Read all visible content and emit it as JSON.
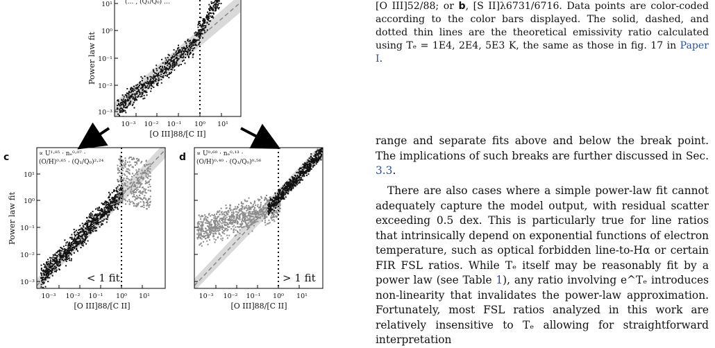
{
  "figure": {
    "top_panel": {
      "ylabel": "Power law fit",
      "xlabel": "[O III]88/[C II]",
      "y_ticks": [
        "10¹",
        "10⁰",
        "10⁻¹",
        "10⁻²",
        "10⁻³"
      ],
      "x_ticks": [
        "10⁻³",
        "10⁻²",
        "10⁻¹",
        "10⁰",
        "10¹"
      ],
      "formula": "(… , (Q₁/Q₀) …"
    },
    "panel_c": {
      "label": "c",
      "ylabel": "Power law fit",
      "xlabel": "[O III]88/[C II]",
      "formula_line1": "∝ U¹·⁸⁵ · nₑ⁰·⁰⁷ ·",
      "formula_line2": "(O/H)⁰·⁶⁵ · (Q₁/Q₀)²·²⁴",
      "note": "< 1 fit",
      "y_ticks": [
        "10¹",
        "10⁰",
        "10⁻¹",
        "10⁻²",
        "10⁻³"
      ],
      "x_ticks": [
        "10⁻³",
        "10⁻²",
        "10⁻¹",
        "10⁰",
        "10¹"
      ]
    },
    "panel_d": {
      "label": "d",
      "xlabel": "[O III]88/[C II]",
      "formula_line1": "∝ U⁰·⁶⁰ · nₑ⁰·¹³ ·",
      "formula_line2": "(O/H)⁰·⁴⁰ · (Q₁/Q₀)⁰·⁵⁶",
      "note": "> 1 fit",
      "x_ticks": [
        "10⁻³",
        "10⁻²",
        "10⁻¹",
        "10⁰",
        "10¹"
      ]
    }
  },
  "caption": {
    "text_before": "[O III]52/88; or ",
    "b": "b",
    "text_middle": ", [S II]λ6731/6716. Data points are color-coded according to the color bars displayed. The solid, dashed, and dotted thin lines are the theoretical emissivity ratio calculated using Tₑ = 1E4, 2E4, 5E3 K, the same as those in fig. 17 in ",
    "link": "Paper I",
    "text_after": "."
  },
  "body": {
    "para1": "range and separate fits above and below the break point. The implications of such breaks are further discussed in Sec. ",
    "para1_link": "3.3",
    "para1_end": ".",
    "para2_a": "There are also cases where a simple power-law fit cannot adequately capture the model output, with residual scatter exceeding 0.5 dex. This is particularly true for line ratios that intrinsically depend on exponential functions of electron temperature, such as optical forbidden line-to-Hα or certain FIR FSL ratios. While Tₑ itself may be reasonably fit by a power law (see Table ",
    "para2_link": "1",
    "para2_b": "), any ratio involving e^Tₑ introduces non-linearity that invalidates the power-law approximation. Fortunately, most FSL ratios analyzed in this work are relatively insensitive to Tₑ allowing for straightforward interpretation"
  }
}
